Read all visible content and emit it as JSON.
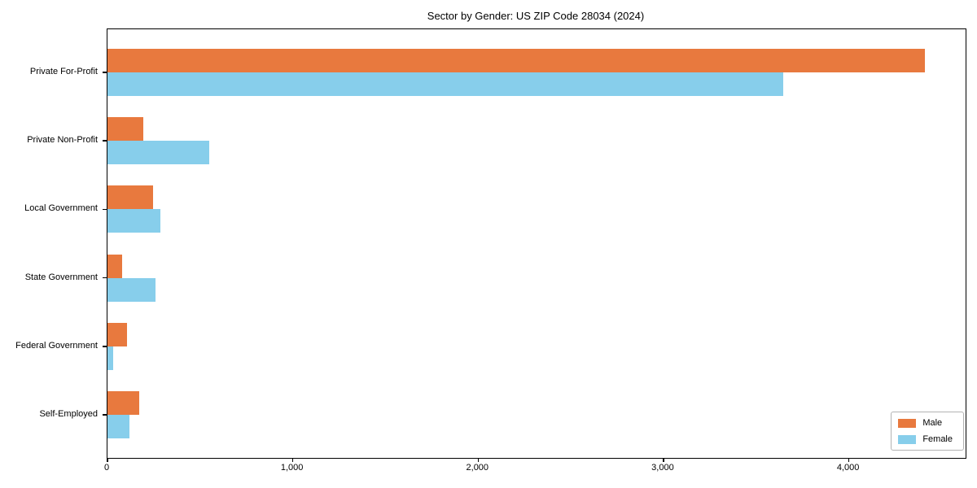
{
  "chart_data": {
    "type": "bar",
    "orientation": "horizontal",
    "title": "Sector by Gender: US ZIP Code 28034 (2024)",
    "xlabel": "",
    "ylabel": "",
    "categories": [
      "Private For-Profit",
      "Private Non-Profit",
      "Local Government",
      "State Government",
      "Federal Government",
      "Self-Employed"
    ],
    "series": [
      {
        "name": "Male",
        "color": "#e8793e",
        "values": [
          4410,
          195,
          245,
          80,
          105,
          170
        ]
      },
      {
        "name": "Female",
        "color": "#87ceeb",
        "values": [
          3645,
          550,
          285,
          260,
          30,
          120
        ]
      }
    ],
    "xlim": [
      0,
      4630
    ],
    "x_ticks": [
      {
        "value": 0,
        "label": "0"
      },
      {
        "value": 1000,
        "label": "1,000"
      },
      {
        "value": 2000,
        "label": "2,000"
      },
      {
        "value": 3000,
        "label": "3,000"
      },
      {
        "value": 4000,
        "label": "4,000"
      }
    ],
    "legend": {
      "position": "lower-right",
      "entries": [
        "Male",
        "Female"
      ]
    },
    "grid": false,
    "colors": {
      "spine": "#000000",
      "text": "#000000",
      "legend_border": "#b3b3b3",
      "background": "#ffffff"
    }
  }
}
